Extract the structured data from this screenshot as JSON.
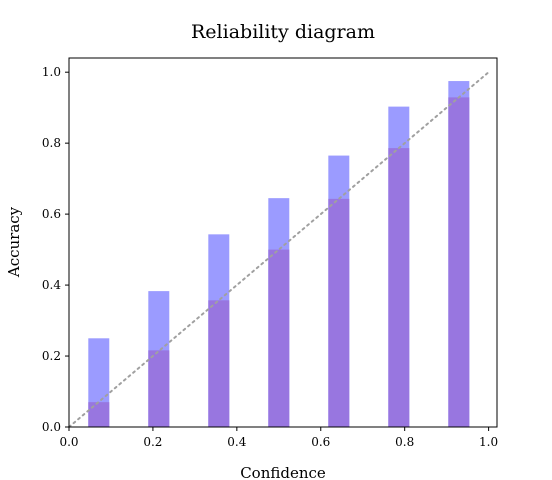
{
  "chart_data": {
    "type": "bar",
    "title": "Reliability diagram",
    "xlabel": "Confidence",
    "ylabel": "Accuracy",
    "xlim": [
      0.0,
      1.02
    ],
    "ylim": [
      0.0,
      1.04
    ],
    "x_ticks": [
      "0.0",
      "0.2",
      "0.4",
      "0.6",
      "0.8",
      "1.0"
    ],
    "y_ticks": [
      "0.0",
      "0.2",
      "0.4",
      "0.6",
      "0.8",
      "1.0"
    ],
    "bin_width": 0.05,
    "x": [
      0.071,
      0.214,
      0.357,
      0.5,
      0.643,
      0.786,
      0.929
    ],
    "series": [
      {
        "values": [
          0.25,
          0.383,
          0.543,
          0.645,
          0.765,
          0.903,
          0.975
        ],
        "color": "#9b9bff"
      },
      {
        "values": [
          0.07,
          0.216,
          0.357,
          0.5,
          0.643,
          0.786,
          0.929
        ],
        "color": "#9876e0"
      }
    ],
    "reference_line": {
      "from": [
        0,
        0
      ],
      "to": [
        1,
        1
      ],
      "style": "dotted",
      "color": "#a0a0a0"
    },
    "grid": false,
    "legend": "none"
  }
}
